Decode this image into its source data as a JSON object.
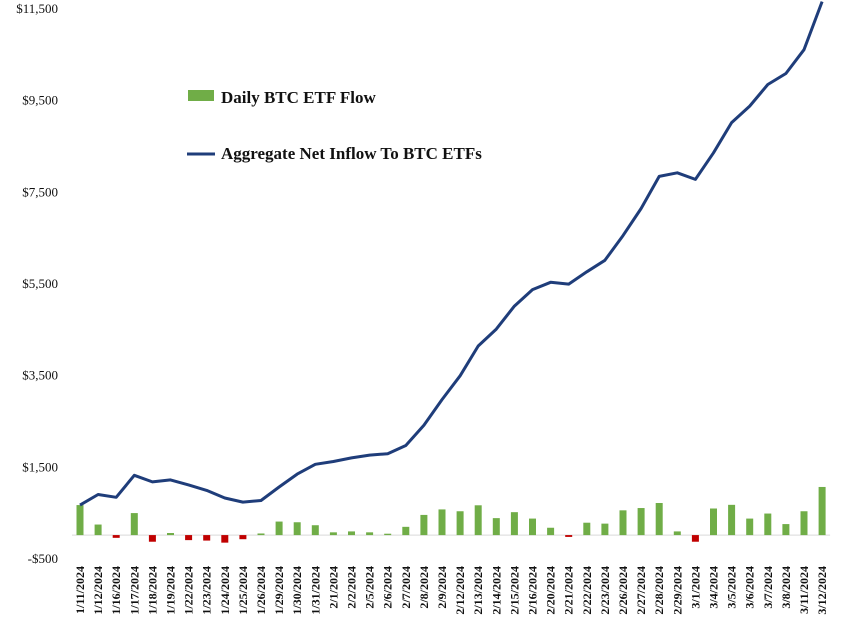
{
  "chart_data": {
    "type": "bar+line",
    "title": "",
    "xlabel": "",
    "ylabel": "",
    "ylim": [
      -500,
      11500
    ],
    "yticks": [
      "$11,500",
      "$9,500",
      "$7,500",
      "$5,500",
      "$3,500",
      "$1,500",
      "-$500"
    ],
    "ytick_values": [
      11500,
      9500,
      7500,
      5500,
      3500,
      1500,
      -500
    ],
    "grid": false,
    "legend_position": "upper-left",
    "categories": [
      "1/11/2024",
      "1/12/2024",
      "1/16/2024",
      "1/17/2024",
      "1/18/2024",
      "1/19/2024",
      "1/22/2024",
      "1/23/2024",
      "1/24/2024",
      "1/25/2024",
      "1/26/2024",
      "1/29/2024",
      "1/30/2024",
      "1/31/2024",
      "2/1/2024",
      "2/2/2024",
      "2/5/2024",
      "2/6/2024",
      "2/7/2024",
      "2/8/2024",
      "2/9/2024",
      "2/12/2024",
      "2/13/2024",
      "2/14/2024",
      "2/15/2024",
      "2/16/2024",
      "2/20/2024",
      "2/21/2024",
      "2/22/2024",
      "2/23/2024",
      "2/26/2024",
      "2/27/2024",
      "2/28/2024",
      "2/29/2024",
      "3/1/2024",
      "3/4/2024",
      "3/5/2024",
      "3/6/2024",
      "3/7/2024",
      "3/8/2024",
      "3/11/2024",
      "3/12/2024"
    ],
    "series": [
      {
        "name": "Daily BTC ETF Flow",
        "kind": "bar",
        "color": "#70ad47",
        "negative_color": "#c00000",
        "values": [
          655,
          230,
          -60,
          480,
          -145,
          45,
          -110,
          -120,
          -165,
          -90,
          35,
          295,
          280,
          215,
          60,
          80,
          60,
          30,
          180,
          440,
          560,
          520,
          650,
          370,
          500,
          360,
          160,
          -40,
          270,
          250,
          540,
          590,
          700,
          80,
          -145,
          580,
          660,
          360,
          470,
          240,
          520,
          1050
        ]
      },
      {
        "name": "Aggregate Net Inflow To BTC ETFs",
        "kind": "line",
        "color": "#1f3d7a",
        "values": [
          655,
          885,
          825,
          1305,
          1160,
          1205,
          1095,
          975,
          810,
          720,
          755,
          1050,
          1330,
          1545,
          1605,
          1685,
          1745,
          1775,
          1955,
          2395,
          2955,
          3475,
          4125,
          4495,
          4995,
          5355,
          5515,
          5475,
          5745,
          5995,
          6535,
          7125,
          7825,
          7905,
          7760,
          8340,
          9000,
          9360,
          9830,
          10070,
          10590,
          11640
        ]
      }
    ]
  }
}
